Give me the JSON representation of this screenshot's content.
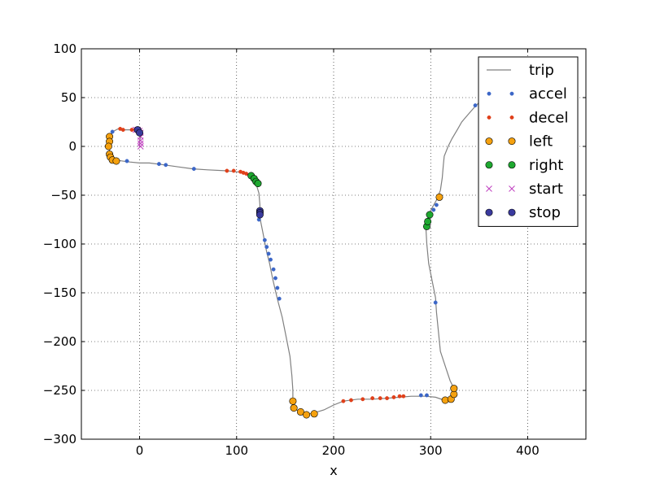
{
  "chart_data": {
    "type": "line",
    "title": "",
    "xlabel": "x",
    "ylabel": "",
    "xlim": [
      -60,
      460
    ],
    "ylim": [
      -300,
      100
    ],
    "xticks": [
      0,
      100,
      200,
      300,
      400
    ],
    "yticks": [
      -300,
      -250,
      -200,
      -150,
      -100,
      -50,
      0,
      50,
      100
    ],
    "xtick_labels": [
      "0",
      "100",
      "200",
      "300",
      "400"
    ],
    "ytick_labels": [
      "−300",
      "−250",
      "−200",
      "−150",
      "−100",
      "−50",
      "0",
      "50",
      "100"
    ],
    "grid": true,
    "legend_position": "top-right",
    "series": [
      {
        "name": "trip",
        "kind": "line",
        "color": "#808080",
        "points": [
          [
            350,
            45
          ],
          [
            345,
            40
          ],
          [
            338,
            32
          ],
          [
            332,
            25
          ],
          [
            328,
            18
          ],
          [
            322,
            8
          ],
          [
            318,
            0
          ],
          [
            314,
            -10
          ],
          [
            313,
            -20
          ],
          [
            312,
            -32
          ],
          [
            310,
            -45
          ],
          [
            306,
            -55
          ],
          [
            302,
            -62
          ],
          [
            298,
            -70
          ],
          [
            296,
            -78
          ],
          [
            295,
            -82
          ],
          [
            296,
            -100
          ],
          [
            298,
            -120
          ],
          [
            302,
            -140
          ],
          [
            305,
            -155
          ],
          [
            306,
            -170
          ],
          [
            308,
            -190
          ],
          [
            310,
            -210
          ],
          [
            316,
            -228
          ],
          [
            320,
            -240
          ],
          [
            324,
            -248
          ],
          [
            323,
            -255
          ],
          [
            320,
            -259
          ],
          [
            314,
            -260
          ],
          [
            305,
            -257
          ],
          [
            295,
            -256
          ],
          [
            280,
            -256
          ],
          [
            268,
            -257
          ],
          [
            255,
            -258
          ],
          [
            240,
            -259
          ],
          [
            225,
            -259
          ],
          [
            210,
            -261
          ],
          [
            200,
            -265
          ],
          [
            190,
            -270
          ],
          [
            180,
            -273
          ],
          [
            170,
            -275
          ],
          [
            163,
            -271
          ],
          [
            159,
            -267
          ],
          [
            158,
            -262
          ],
          [
            158,
            -250
          ],
          [
            157,
            -235
          ],
          [
            155,
            -215
          ],
          [
            151,
            -195
          ],
          [
            147,
            -175
          ],
          [
            143,
            -160
          ],
          [
            140,
            -148
          ],
          [
            137,
            -135
          ],
          [
            134,
            -120
          ],
          [
            131,
            -108
          ],
          [
            129,
            -98
          ],
          [
            127,
            -88
          ],
          [
            125,
            -78
          ],
          [
            124,
            -72
          ],
          [
            124,
            -66
          ],
          [
            124,
            -60
          ],
          [
            123,
            -48
          ],
          [
            120,
            -38
          ],
          [
            117,
            -32
          ],
          [
            114,
            -29
          ],
          [
            108,
            -27
          ],
          [
            100,
            -26
          ],
          [
            90,
            -25
          ],
          [
            70,
            -24
          ],
          [
            55,
            -23
          ],
          [
            40,
            -21
          ],
          [
            26,
            -19
          ],
          [
            10,
            -17
          ],
          [
            0,
            -17
          ],
          [
            -10,
            -16
          ],
          [
            -25,
            -14
          ],
          [
            -28,
            -13
          ],
          [
            -30,
            -10
          ],
          [
            -31,
            -5
          ],
          [
            -31,
            0
          ],
          [
            -31,
            5
          ],
          [
            -30,
            10
          ],
          [
            -28,
            15
          ],
          [
            -22,
            18
          ],
          [
            -15,
            17
          ],
          [
            -5,
            17
          ],
          [
            -1,
            16
          ],
          [
            1,
            14
          ],
          [
            1,
            10
          ],
          [
            0,
            5
          ],
          [
            0,
            0
          ]
        ]
      },
      {
        "name": "accel",
        "kind": "dot",
        "color": "#3b66c7",
        "points": [
          [
            -28,
            15
          ],
          [
            -13,
            -15
          ],
          [
            20,
            -18
          ],
          [
            27,
            -19
          ],
          [
            56,
            -23
          ],
          [
            123,
            -75
          ],
          [
            129,
            -96
          ],
          [
            131,
            -103
          ],
          [
            133,
            -110
          ],
          [
            135,
            -116
          ],
          [
            138,
            -126
          ],
          [
            140,
            -135
          ],
          [
            142,
            -145
          ],
          [
            144,
            -156
          ],
          [
            290,
            -255
          ],
          [
            296,
            -255
          ],
          [
            305,
            -160
          ],
          [
            306,
            -60
          ],
          [
            303,
            -65
          ],
          [
            346,
            42
          ]
        ]
      },
      {
        "name": "decel",
        "kind": "dot",
        "color": "#e0401a",
        "points": [
          [
            -20,
            18
          ],
          [
            -17,
            17
          ],
          [
            -8,
            17
          ],
          [
            -4,
            17
          ],
          [
            90,
            -25
          ],
          [
            97,
            -25
          ],
          [
            104,
            -26
          ],
          [
            107,
            -27
          ],
          [
            110,
            -28
          ],
          [
            210,
            -261
          ],
          [
            218,
            -260
          ],
          [
            230,
            -259
          ],
          [
            240,
            -258
          ],
          [
            248,
            -258
          ],
          [
            255,
            -258
          ],
          [
            262,
            -257
          ],
          [
            268,
            -256
          ],
          [
            272,
            -256
          ]
        ]
      },
      {
        "name": "left",
        "kind": "circle",
        "color": "#f5a10f",
        "points": [
          [
            -31,
            10
          ],
          [
            -31,
            5
          ],
          [
            -32,
            0
          ],
          [
            -31,
            -8
          ],
          [
            -30,
            -11
          ],
          [
            -28,
            -14
          ],
          [
            -24,
            -15
          ],
          [
            158,
            -261
          ],
          [
            159,
            -268
          ],
          [
            166,
            -272
          ],
          [
            172,
            -275
          ],
          [
            180,
            -274
          ],
          [
            309,
            -52
          ],
          [
            315,
            -260
          ],
          [
            321,
            -259
          ],
          [
            324,
            -254
          ],
          [
            324,
            -248
          ]
        ]
      },
      {
        "name": "right",
        "kind": "circle",
        "color": "#1ea830",
        "points": [
          [
            115,
            -30
          ],
          [
            118,
            -33
          ],
          [
            120,
            -36
          ],
          [
            122,
            -38
          ],
          [
            296,
            -82
          ],
          [
            297,
            -77
          ],
          [
            299,
            -70
          ]
        ]
      },
      {
        "name": "start",
        "kind": "x",
        "color": "#c040c0",
        "points": [
          [
            -4,
            17
          ],
          [
            -2,
            17
          ],
          [
            0,
            16
          ],
          [
            1,
            14
          ],
          [
            1,
            10
          ],
          [
            1,
            6
          ],
          [
            1,
            3
          ],
          [
            1,
            0
          ]
        ]
      },
      {
        "name": "stop",
        "kind": "circle",
        "color": "#3a3a9e",
        "points": [
          [
            -2,
            17
          ],
          [
            0,
            14
          ],
          [
            124,
            -66
          ],
          [
            124,
            -68
          ],
          [
            124,
            -70
          ]
        ]
      }
    ]
  }
}
